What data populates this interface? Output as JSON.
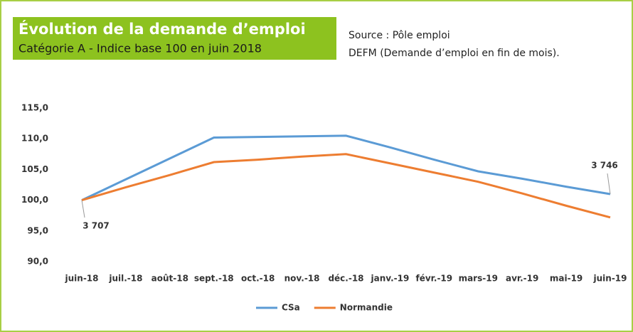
{
  "chart_data": {
    "type": "line",
    "title": "Évolution de la demande d’emploi",
    "subtitle": "Catégorie A - Indice base 100 en juin 2018",
    "source": [
      "Source : Pôle emploi",
      "DEFM (Demande d’emploi en fin de mois)."
    ],
    "categories": [
      "juin-18",
      "juil.-18",
      "août-18",
      "sept.-18",
      "oct.-18",
      "nov.-18",
      "déc.-18",
      "janv.-19",
      "févr.-19",
      "mars-19",
      "avr.-19",
      "mai-19",
      "juin-19"
    ],
    "series": [
      {
        "name": "CSa",
        "color": "#5b9bd5",
        "values": [
          100,
          103.4,
          106.8,
          110.2,
          110.3,
          110.4,
          110.5,
          108.6,
          106.6,
          104.7,
          103.5,
          102.2,
          101.0
        ]
      },
      {
        "name": "Normandie",
        "color": "#ed7d31",
        "values": [
          100,
          102.1,
          104.1,
          106.2,
          106.6,
          107.1,
          107.5,
          106.0,
          104.5,
          103.0,
          101.1,
          99.1,
          97.2
        ]
      }
    ],
    "annotations": [
      {
        "text": "3 707",
        "category": "juin-18"
      },
      {
        "text": "3 746",
        "category": "juin-19"
      }
    ],
    "ylim": [
      90,
      115
    ],
    "yticks": [
      {
        "value": 90,
        "label": "90,0"
      },
      {
        "value": 95,
        "label": "95,0"
      },
      {
        "value": 100,
        "label": "100,0"
      },
      {
        "value": 105,
        "label": "105,0"
      },
      {
        "value": 110,
        "label": "110,0"
      },
      {
        "value": 115,
        "label": "115,0"
      }
    ],
    "grid": false,
    "legend": "bottom"
  }
}
